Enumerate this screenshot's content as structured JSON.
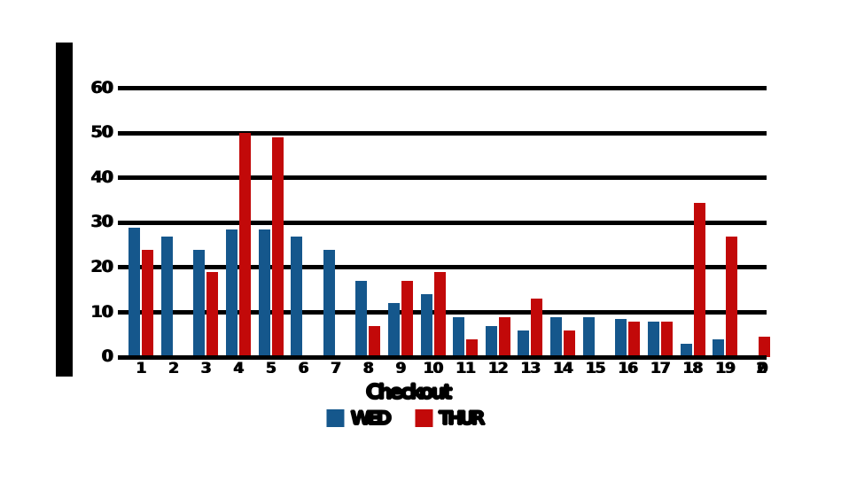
{
  "chart_data": {
    "type": "bar",
    "title": "",
    "xlabel": "Checkout",
    "ylabel": "",
    "categories": [
      "1",
      "2",
      "3",
      "4",
      "5",
      "6",
      "7",
      "8",
      "9",
      "10",
      "11",
      "12",
      "13",
      "14",
      "15",
      "16",
      "17",
      "18",
      "19",
      "20"
    ],
    "series": [
      {
        "name": "WED",
        "color": "#15578c",
        "values": [
          29,
          27,
          24,
          28.5,
          28.5,
          27,
          24,
          17,
          12,
          14,
          9,
          7,
          6,
          9,
          9,
          8.5,
          8,
          3,
          4,
          null
        ]
      },
      {
        "name": "THUR",
        "color": "#c20909",
        "values": [
          24,
          null,
          19,
          50,
          49,
          null,
          null,
          7,
          17,
          19,
          4,
          9,
          13,
          6,
          null,
          8,
          8,
          34.5,
          27,
          4.5
        ]
      }
    ],
    "yticks": [
      0,
      10,
      20,
      30,
      40,
      50,
      60
    ],
    "ylim": [
      0,
      65
    ],
    "grid": "horizontal",
    "gridline_color": "#000000",
    "legend_position": "bottom",
    "y_axis_label_block_color": "#000000"
  },
  "layout_values": {
    "note_fields_are_pixel_geometry": "none"
  }
}
